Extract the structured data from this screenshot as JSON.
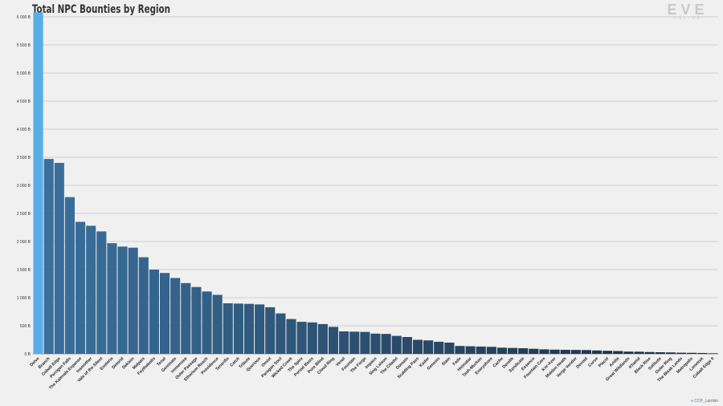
{
  "title": "Total NPC Bounties by Region",
  "credit": {
    "icon": "twitter-icon",
    "handle": "CCP_Larrikin"
  },
  "logo": {
    "word": "EVE",
    "sub": "ONLINE"
  },
  "chart_data": {
    "type": "bar",
    "title": "Total NPC Bounties by Region",
    "xlabel": "",
    "ylabel": "",
    "ylim": [
      0,
      6100
    ],
    "yticks": [
      0,
      500,
      1000,
      1500,
      2000,
      2500,
      3000,
      3500,
      4000,
      4500,
      5000,
      5500,
      6000
    ],
    "ytick_labels": [
      "0 B",
      "500 B",
      "1 000 B",
      "1 500 B",
      "2 000 B",
      "2 500 B",
      "3 000 B",
      "3 500 B",
      "4 000 B",
      "4 500 B",
      "5 000 B",
      "5 500 B",
      "6 000 B"
    ],
    "grid": true,
    "legend": "none",
    "highlight_color": "#5aaee8",
    "gradient_start": "#3a6f9c",
    "gradient_end": "#1a2b3d",
    "categories": [
      "Delve",
      "Branch",
      "Cobalt Edge",
      "Perrigen Falls",
      "The Kalevala Expanse",
      "Insmother",
      "Vale of the Silent",
      "Esoteria",
      "Detorid",
      "Deklein",
      "Malpais",
      "Feythabolis",
      "Tenal",
      "Geminate",
      "Immensea",
      "Outer Passage",
      "Etherium Reach",
      "Providence",
      "Tenerifis",
      "Catch",
      "Tribute",
      "Querious",
      "Omist",
      "Paragon Soul",
      "Wicked Creek",
      "The Spire",
      "Period Basis",
      "Pure Blind",
      "Cloud Ring",
      "Venal",
      "Fountain",
      "The Forge",
      "Impass",
      "Sing Laison",
      "The Citadel",
      "Domain",
      "Scalding Pass",
      "Kador",
      "Genesis",
      "Stain",
      "Fade",
      "Heimatar",
      "Tash-Murkon",
      "Everyshore",
      "Cache",
      "Derelik",
      "Syndicate",
      "Essence",
      "Fountain Core",
      "Kor-Azor",
      "Molden Heath",
      "Verge Vendor",
      "Devoid",
      "Curse",
      "Placid",
      "Aridia",
      "Great Wildlands",
      "Khanid",
      "Black Rise",
      "Solitude",
      "Outer Ring",
      "The Bleak Lands",
      "Metropolis",
      "Lonetrek",
      "Cobalt Edge II"
    ],
    "values": [
      6080,
      3470,
      3400,
      2790,
      2350,
      2280,
      2180,
      1970,
      1910,
      1890,
      1720,
      1500,
      1440,
      1350,
      1260,
      1190,
      1110,
      1050,
      900,
      895,
      890,
      880,
      830,
      720,
      620,
      570,
      560,
      530,
      480,
      400,
      395,
      390,
      360,
      355,
      320,
      300,
      250,
      240,
      215,
      200,
      140,
      135,
      130,
      125,
      110,
      105,
      100,
      90,
      80,
      75,
      72,
      70,
      68,
      60,
      55,
      50,
      40,
      38,
      32,
      28,
      25,
      20,
      18,
      15,
      10
    ]
  }
}
